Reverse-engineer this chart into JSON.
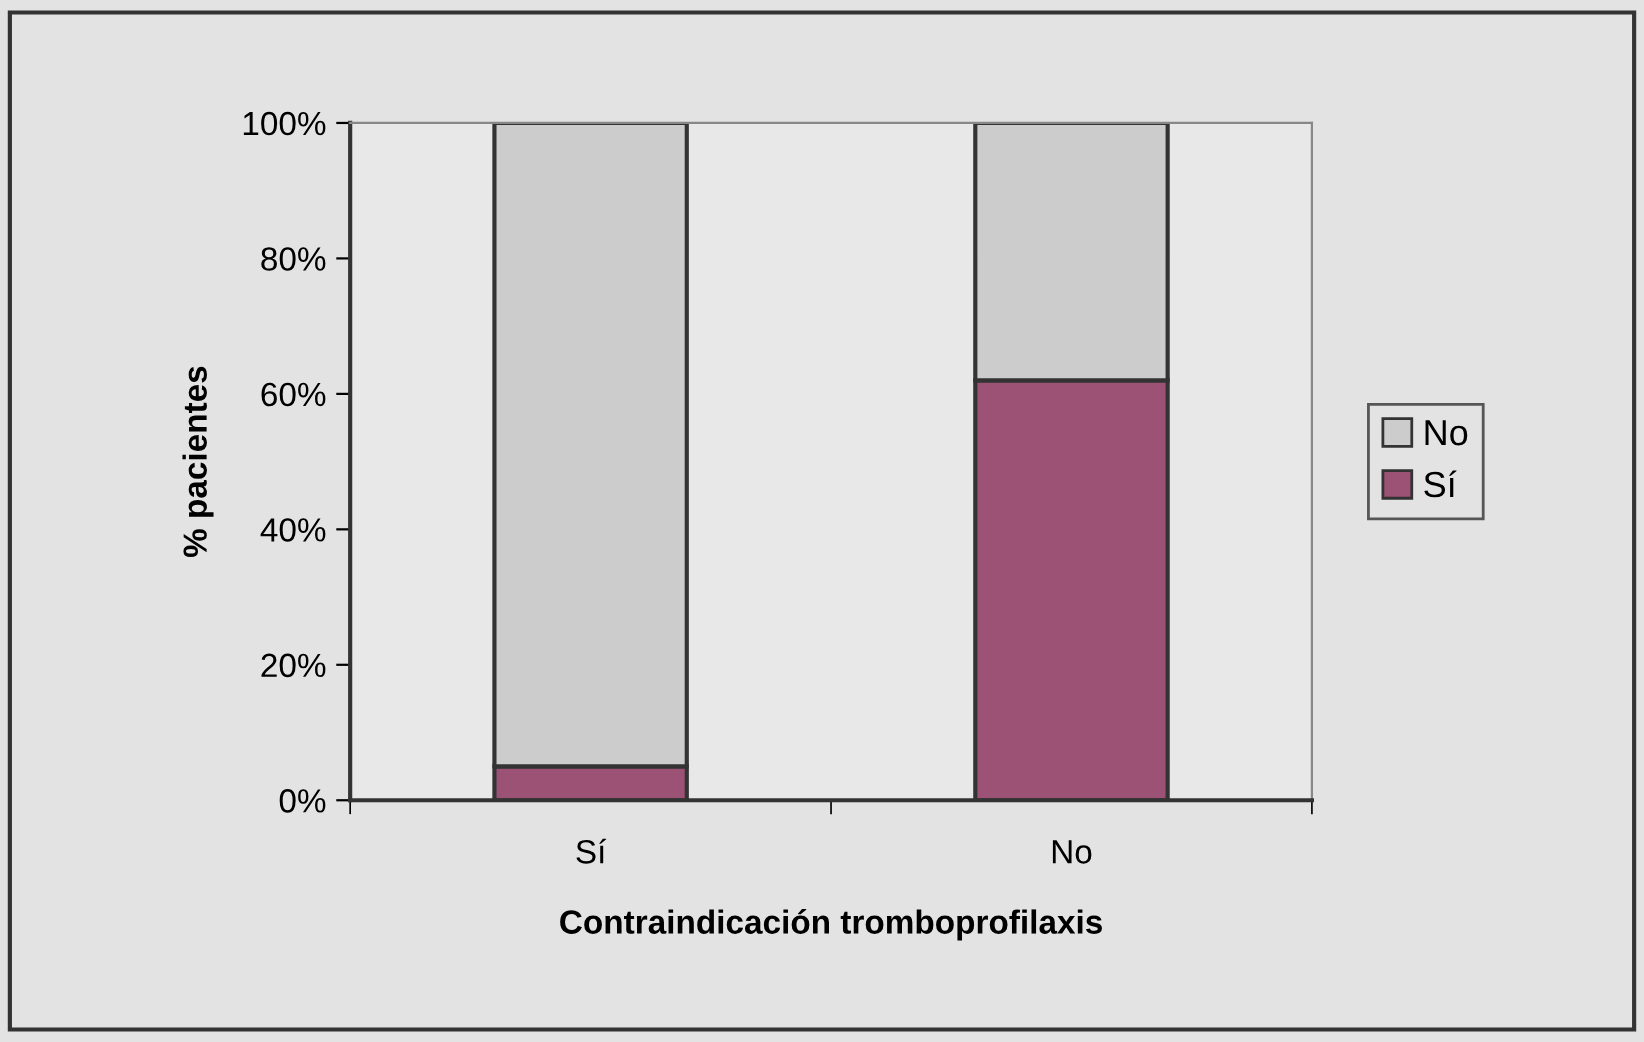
{
  "chart_data": {
    "type": "bar",
    "stacked": true,
    "xlabel": "Contraindicación tromboprofilaxis",
    "ylabel": "% pacientes",
    "categories": [
      "Sí",
      "No"
    ],
    "series": [
      {
        "name": "Sí",
        "color": "#9b5275",
        "values": [
          5,
          62
        ]
      },
      {
        "name": "No",
        "color": "#cccccc",
        "values": [
          95,
          38
        ]
      }
    ],
    "ylim": [
      0,
      100
    ],
    "yticks": [
      {
        "value": 0,
        "label": "0%"
      },
      {
        "value": 20,
        "label": "20%"
      },
      {
        "value": 40,
        "label": "40%"
      },
      {
        "value": 60,
        "label": "60%"
      },
      {
        "value": 80,
        "label": "80%"
      },
      {
        "value": 100,
        "label": "100%"
      }
    ],
    "grid": false,
    "legend": "right"
  }
}
